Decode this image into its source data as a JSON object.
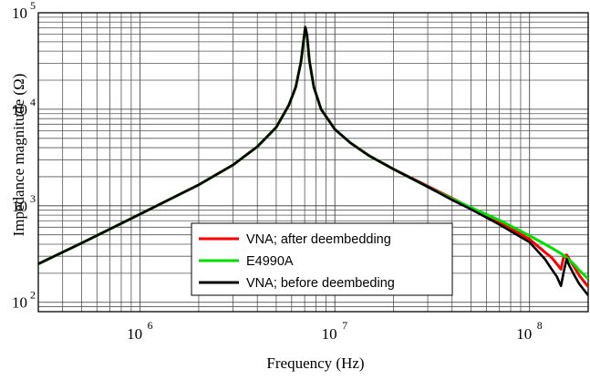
{
  "chart_data": {
    "type": "line",
    "title": "",
    "xlabel": "Frequency (Hz)",
    "ylabel": "Impedance magnitude (Ω)",
    "x_scale": "log",
    "y_scale": "log",
    "xlim": [
      300000,
      200000000
    ],
    "ylim": [
      80,
      100000
    ],
    "grid": true,
    "legend_position": "lower-right",
    "x_ticks": [
      {
        "base": "10",
        "exp": "6",
        "value": 1000000
      },
      {
        "base": "10",
        "exp": "7",
        "value": 10000000
      },
      {
        "base": "10",
        "exp": "8",
        "value": 100000000
      }
    ],
    "y_ticks": [
      {
        "base": "10",
        "exp": "2",
        "value": 100
      },
      {
        "base": "10",
        "exp": "3",
        "value": 1000
      },
      {
        "base": "10",
        "exp": "4",
        "value": 10000
      },
      {
        "base": "10",
        "exp": "5",
        "value": 100000
      }
    ],
    "x": [
      300000,
      500000,
      1000000,
      2000000,
      3000000,
      4000000,
      5000000,
      5800000,
      6300000,
      6700000,
      6900000,
      7050000,
      7200000,
      7400000,
      7800000,
      8500000,
      10000000,
      12000000,
      15000000,
      20000000,
      30000000,
      40000000,
      50000000,
      70000000,
      100000000,
      120000000,
      130000000,
      138000000,
      145000000,
      150000000,
      155000000,
      160000000,
      170000000,
      180000000,
      200000000
    ],
    "series": [
      {
        "name": "VNA; after deembedding",
        "color": "#ff0000",
        "values": [
          250,
          410,
          820,
          1650,
          2650,
          4100,
          6500,
          11000,
          17000,
          31000,
          50000,
          71000,
          58000,
          32000,
          17000,
          10000,
          6200,
          4500,
          3300,
          2400,
          1600,
          1200,
          950,
          680,
          450,
          330,
          290,
          250,
          220,
          300,
          310,
          280,
          230,
          190,
          145
        ]
      },
      {
        "name": "E4990A",
        "color": "#00e000",
        "values": [
          250,
          410,
          820,
          1650,
          2650,
          4100,
          6500,
          11000,
          17000,
          31000,
          50000,
          71000,
          58000,
          32000,
          17000,
          10000,
          6200,
          4500,
          3300,
          2400,
          1570,
          1180,
          960,
          710,
          490,
          400,
          365,
          340,
          320,
          305,
          290,
          275,
          245,
          215,
          175
        ]
      },
      {
        "name": "VNA; before deembeding",
        "color": "#000000",
        "values": [
          250,
          410,
          820,
          1650,
          2650,
          4100,
          6500,
          11000,
          17000,
          31000,
          50000,
          71000,
          58000,
          32000,
          17000,
          10000,
          6200,
          4500,
          3300,
          2400,
          1570,
          1150,
          920,
          640,
          420,
          280,
          220,
          185,
          148,
          210,
          280,
          240,
          190,
          155,
          118
        ]
      }
    ]
  }
}
